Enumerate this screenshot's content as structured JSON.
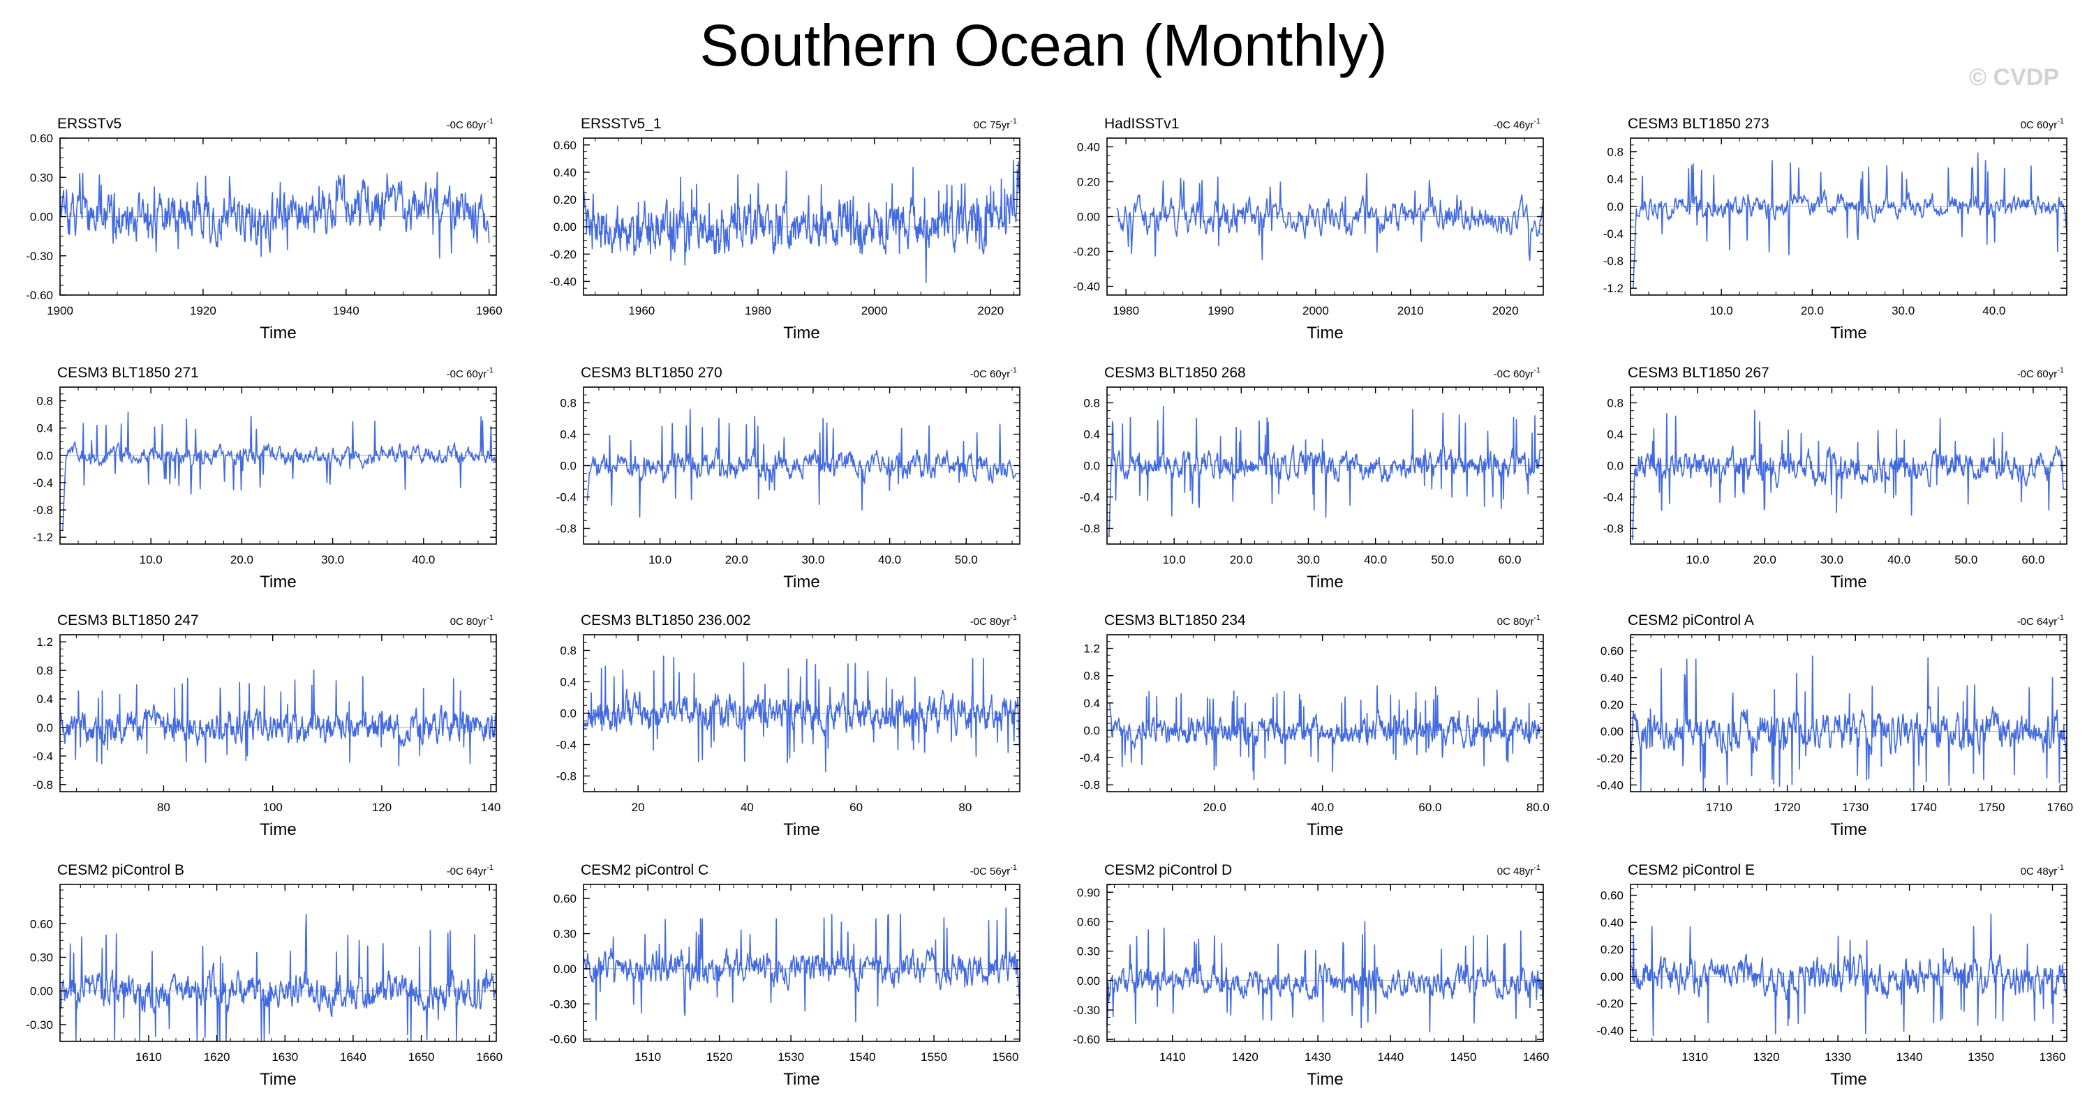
{
  "title": "Southern Ocean (Monthly)",
  "copyright": "© CVDP",
  "colors": {
    "line": "#4169e1",
    "zero": "#b4b4b4",
    "axis": "#000000"
  },
  "chart_data": [
    {
      "type": "line",
      "title": "ERSSTv5",
      "trend": "-0C 60yr",
      "trend_sup": "-1",
      "xlabel": "Time",
      "xlim": [
        1900,
        1961
      ],
      "ylim": [
        -0.6,
        0.6
      ],
      "yticks": [
        "-0.60",
        "-0.30",
        "0.00",
        "0.30",
        "0.60"
      ],
      "ytick_values": [
        -0.6,
        -0.3,
        0,
        0.3,
        0.6
      ],
      "xticks": [
        "1900",
        "1920",
        "1940",
        "1960"
      ],
      "xtick_values": [
        1900,
        1920,
        1940,
        1960
      ],
      "series": {
        "x_start": 1900,
        "x_end": 1960,
        "amp": 0.13,
        "mean": 0.0,
        "spike": 0.25,
        "start_val": 0.15,
        "end_val": -0.2,
        "seed": 11,
        "trend_shape": "warm1940"
      }
    },
    {
      "type": "line",
      "title": "ERSSTv5_1",
      "trend": "0C 75yr",
      "trend_sup": "-1",
      "xlabel": "Time",
      "xlim": [
        1950,
        2025
      ],
      "ylim": [
        -0.5,
        0.65
      ],
      "yticks": [
        "-0.40",
        "-0.20",
        "0.00",
        "0.20",
        "0.40",
        "0.60"
      ],
      "ytick_values": [
        -0.4,
        -0.2,
        0,
        0.2,
        0.4,
        0.6
      ],
      "xticks": [
        "1960",
        "1980",
        "2000",
        "2020"
      ],
      "xtick_values": [
        1960,
        1980,
        2000,
        2020
      ],
      "series": {
        "x_start": 1950,
        "x_end": 2025,
        "amp": 0.12,
        "mean": 0.0,
        "spike": 0.3,
        "start_val": 0.3,
        "end_val": 0.25,
        "seed": 12,
        "trend_shape": "late_rise"
      }
    },
    {
      "type": "line",
      "title": "HadISSTv1",
      "trend": "-0C 46yr",
      "trend_sup": "-1",
      "xlabel": "Time",
      "xlim": [
        1978,
        2024
      ],
      "ylim": [
        -0.45,
        0.45
      ],
      "yticks": [
        "-0.40",
        "-0.20",
        "0.00",
        "0.20",
        "0.40"
      ],
      "ytick_values": [
        -0.4,
        -0.2,
        0,
        0.2,
        0.4
      ],
      "xticks": [
        "1980",
        "1990",
        "2000",
        "2010",
        "2020"
      ],
      "xtick_values": [
        1980,
        1990,
        2000,
        2010,
        2020
      ],
      "series": {
        "x_start": 1979,
        "x_end": 2024,
        "amp": 0.07,
        "mean": 0.0,
        "spike": 0.2,
        "start_val": 0.05,
        "end_val": 0.1,
        "seed": 13,
        "trend_shape": "flat"
      }
    },
    {
      "type": "line",
      "title": "CESM3 BLT1850 273",
      "trend": "0C 60yr",
      "trend_sup": "-1",
      "xlabel": "Time",
      "xlim": [
        0,
        48
      ],
      "ylim": [
        -1.3,
        1.0
      ],
      "yticks": [
        "-1.2",
        "-0.8",
        "-0.4",
        "0.0",
        "0.4",
        "0.8"
      ],
      "ytick_values": [
        -1.2,
        -0.8,
        -0.4,
        0,
        0.4,
        0.8
      ],
      "xticks": [
        "10.0",
        "20.0",
        "30.0",
        "40.0"
      ],
      "xtick_values": [
        10,
        20,
        30,
        40
      ],
      "series": {
        "x_start": 0.3,
        "x_end": 48,
        "amp": 0.12,
        "mean": 0.0,
        "spike": 0.7,
        "start_val": -1.2,
        "end_val": -0.4,
        "seed": 14,
        "trend_shape": "flat"
      }
    },
    {
      "type": "line",
      "title": "CESM3 BLT1850 271",
      "trend": "-0C 60yr",
      "trend_sup": "-1",
      "xlabel": "Time",
      "xlim": [
        0,
        48
      ],
      "ylim": [
        -1.3,
        1.0
      ],
      "yticks": [
        "-1.2",
        "-0.8",
        "-0.4",
        "0.0",
        "0.4",
        "0.8"
      ],
      "ytick_values": [
        -1.2,
        -0.8,
        -0.4,
        0,
        0.4,
        0.8
      ],
      "xticks": [
        "10.0",
        "20.0",
        "30.0",
        "40.0"
      ],
      "xtick_values": [
        10,
        20,
        30,
        40
      ],
      "series": {
        "x_start": 0.3,
        "x_end": 48,
        "amp": 0.1,
        "mean": 0.0,
        "spike": 0.6,
        "start_val": -1.1,
        "end_val": -0.1,
        "seed": 15,
        "trend_shape": "flat"
      }
    },
    {
      "type": "line",
      "title": "CESM3 BLT1850 270",
      "trend": "-0C 60yr",
      "trend_sup": "-1",
      "xlabel": "Time",
      "xlim": [
        0,
        57
      ],
      "ylim": [
        -1.0,
        1.0
      ],
      "yticks": [
        "-0.8",
        "-0.4",
        "0.0",
        "0.4",
        "0.8"
      ],
      "ytick_values": [
        -0.8,
        -0.4,
        0,
        0.4,
        0.8
      ],
      "xticks": [
        "10.0",
        "20.0",
        "30.0",
        "40.0",
        "50.0"
      ],
      "xtick_values": [
        10,
        20,
        30,
        40,
        50
      ],
      "series": {
        "x_start": 0.5,
        "x_end": 56.5,
        "amp": 0.12,
        "mean": 0.0,
        "spike": 0.65,
        "start_val": -0.45,
        "end_val": -0.1,
        "seed": 16,
        "trend_shape": "flat"
      }
    },
    {
      "type": "line",
      "title": "CESM3 BLT1850 268",
      "trend": "-0C 60yr",
      "trend_sup": "-1",
      "xlabel": "Time",
      "xlim": [
        0,
        65
      ],
      "ylim": [
        -1.0,
        1.0
      ],
      "yticks": [
        "-0.8",
        "-0.4",
        "0.0",
        "0.4",
        "0.8"
      ],
      "ytick_values": [
        -0.8,
        -0.4,
        0,
        0.4,
        0.8
      ],
      "xticks": [
        "10.0",
        "20.0",
        "30.0",
        "40.0",
        "50.0",
        "60.0"
      ],
      "xtick_values": [
        10,
        20,
        30,
        40,
        50,
        60
      ],
      "series": {
        "x_start": 0.3,
        "x_end": 64.5,
        "amp": 0.12,
        "mean": 0.0,
        "spike": 0.65,
        "start_val": -0.9,
        "end_val": 0.2,
        "seed": 17,
        "trend_shape": "flat"
      }
    },
    {
      "type": "line",
      "title": "CESM3 BLT1850 267",
      "trend": "-0C 60yr",
      "trend_sup": "-1",
      "xlabel": "Time",
      "xlim": [
        0,
        65
      ],
      "ylim": [
        -1.0,
        1.0
      ],
      "yticks": [
        "-0.8",
        "-0.4",
        "0.0",
        "0.4",
        "0.8"
      ],
      "ytick_values": [
        -0.8,
        -0.4,
        0,
        0.4,
        0.8
      ],
      "xticks": [
        "10.0",
        "20.0",
        "30.0",
        "40.0",
        "50.0",
        "60.0"
      ],
      "xtick_values": [
        10,
        20,
        30,
        40,
        50,
        60
      ],
      "series": {
        "x_start": 0.3,
        "x_end": 64.5,
        "amp": 0.13,
        "mean": 0.0,
        "spike": 0.6,
        "start_val": -0.95,
        "end_val": -0.3,
        "seed": 18,
        "trend_shape": "flat"
      }
    },
    {
      "type": "line",
      "title": "CESM3 BLT1850 247",
      "trend": "0C 80yr",
      "trend_sup": "-1",
      "xlabel": "Time",
      "xlim": [
        61,
        141
      ],
      "ylim": [
        -0.9,
        1.3
      ],
      "yticks": [
        "-0.8",
        "-0.4",
        "0.0",
        "0.4",
        "0.8",
        "1.2"
      ],
      "ytick_values": [
        -0.8,
        -0.4,
        0,
        0.4,
        0.8,
        1.2
      ],
      "xticks": [
        "80",
        "100",
        "120",
        "140"
      ],
      "xtick_values": [
        80,
        100,
        120,
        140
      ],
      "series": {
        "x_start": 61,
        "x_end": 141,
        "amp": 0.15,
        "mean": 0.0,
        "spike": 0.65,
        "start_val": 0.3,
        "end_val": 0.25,
        "seed": 19,
        "trend_shape": "flat"
      }
    },
    {
      "type": "line",
      "title": "CESM3 BLT1850 236.002",
      "trend": "-0C 80yr",
      "trend_sup": "-1",
      "xlabel": "Time",
      "xlim": [
        10,
        90
      ],
      "ylim": [
        -1.0,
        1.0
      ],
      "yticks": [
        "-0.8",
        "-0.4",
        "0.0",
        "0.4",
        "0.8"
      ],
      "ytick_values": [
        -0.8,
        -0.4,
        0,
        0.4,
        0.8
      ],
      "xticks": [
        "20",
        "40",
        "60",
        "80"
      ],
      "xtick_values": [
        20,
        40,
        60,
        80
      ],
      "series": {
        "x_start": 10,
        "x_end": 90,
        "amp": 0.15,
        "mean": 0.0,
        "spike": 0.6,
        "start_val": -0.2,
        "end_val": -0.55,
        "seed": 20,
        "trend_shape": "flat"
      }
    },
    {
      "type": "line",
      "title": "CESM3 BLT1850 234",
      "trend": "0C 80yr",
      "trend_sup": "-1",
      "xlabel": "Time",
      "xlim": [
        0,
        81
      ],
      "ylim": [
        -0.9,
        1.4
      ],
      "yticks": [
        "-0.8",
        "-0.4",
        "0.0",
        "0.4",
        "0.8",
        "1.2"
      ],
      "ytick_values": [
        -0.8,
        -0.4,
        0,
        0.4,
        0.8,
        1.2
      ],
      "xticks": [
        "20.0",
        "40.0",
        "60.0",
        "80.0"
      ],
      "xtick_values": [
        20,
        40,
        60,
        80
      ],
      "series": {
        "x_start": 0.5,
        "x_end": 80.5,
        "amp": 0.13,
        "mean": 0.0,
        "spike": 0.6,
        "start_val": 0.4,
        "end_val": 0.05,
        "seed": 21,
        "trend_shape": "flat"
      }
    },
    {
      "type": "line",
      "title": "CESM2 piControl A",
      "trend": "-0C 64yr",
      "trend_sup": "-1",
      "xlabel": "Time",
      "xlim": [
        1697,
        1761
      ],
      "ylim": [
        -0.45,
        0.72
      ],
      "yticks": [
        "-0.40",
        "-0.20",
        "0.00",
        "0.20",
        "0.40",
        "0.60"
      ],
      "ytick_values": [
        -0.4,
        -0.2,
        0,
        0.2,
        0.4,
        0.6
      ],
      "xticks": [
        "1710",
        "1720",
        "1730",
        "1740",
        "1750",
        "1760"
      ],
      "xtick_values": [
        1710,
        1720,
        1730,
        1740,
        1750,
        1760
      ],
      "series": {
        "x_start": 1697,
        "x_end": 1761,
        "amp": 0.1,
        "mean": 0.0,
        "spike": 0.45,
        "start_val": -0.3,
        "end_val": -0.2,
        "seed": 22,
        "trend_shape": "flat"
      }
    },
    {
      "type": "line",
      "title": "CESM2 piControl B",
      "trend": "-0C 64yr",
      "trend_sup": "-1",
      "xlabel": "Time",
      "xlim": [
        1597,
        1661
      ],
      "ylim": [
        -0.45,
        0.95
      ],
      "yticks": [
        "-0.30",
        "0.00",
        "0.30",
        "0.60"
      ],
      "ytick_values": [
        -0.3,
        0,
        0.3,
        0.6
      ],
      "xticks": [
        "1610",
        "1620",
        "1630",
        "1640",
        "1650",
        "1660"
      ],
      "xtick_values": [
        1610,
        1620,
        1630,
        1640,
        1650,
        1660
      ],
      "series": {
        "x_start": 1597,
        "x_end": 1661,
        "amp": 0.11,
        "mean": 0.0,
        "spike": 0.55,
        "start_val": -0.2,
        "end_val": 0.05,
        "seed": 23,
        "trend_shape": "flat"
      }
    },
    {
      "type": "line",
      "title": "CESM2 piControl C",
      "trend": "-0C 56yr",
      "trend_sup": "-1",
      "xlabel": "Time",
      "xlim": [
        1501,
        1562
      ],
      "ylim": [
        -0.62,
        0.72
      ],
      "yticks": [
        "-0.60",
        "-0.30",
        "0.00",
        "0.30",
        "0.60"
      ],
      "ytick_values": [
        -0.6,
        -0.3,
        0,
        0.3,
        0.6
      ],
      "xticks": [
        "1510",
        "1520",
        "1530",
        "1540",
        "1550",
        "1560"
      ],
      "xtick_values": [
        1510,
        1520,
        1530,
        1540,
        1550,
        1560
      ],
      "series": {
        "x_start": 1501,
        "x_end": 1562,
        "amp": 0.1,
        "mean": 0.0,
        "spike": 0.45,
        "start_val": 0.1,
        "end_val": -0.3,
        "seed": 24,
        "trend_shape": "flat"
      }
    },
    {
      "type": "line",
      "title": "CESM2 piControl D",
      "trend": "0C 48yr",
      "trend_sup": "-1",
      "xlabel": "Time",
      "xlim": [
        1401,
        1461
      ],
      "ylim": [
        -0.62,
        0.98
      ],
      "yticks": [
        "-0.60",
        "-0.30",
        "0.00",
        "0.30",
        "0.60",
        "0.90"
      ],
      "ytick_values": [
        -0.6,
        -0.3,
        0,
        0.3,
        0.6,
        0.9
      ],
      "xticks": [
        "1410",
        "1420",
        "1430",
        "1440",
        "1450",
        "1460"
      ],
      "xtick_values": [
        1410,
        1420,
        1430,
        1440,
        1450,
        1460
      ],
      "series": {
        "x_start": 1401,
        "x_end": 1461,
        "amp": 0.1,
        "mean": 0.0,
        "spike": 0.55,
        "start_val": -0.45,
        "end_val": -0.1,
        "seed": 25,
        "trend_shape": "flat"
      }
    },
    {
      "type": "line",
      "title": "CESM2 piControl E",
      "trend": "0C 48yr",
      "trend_sup": "-1",
      "xlabel": "Time",
      "xlim": [
        1301,
        1362
      ],
      "ylim": [
        -0.48,
        0.68
      ],
      "yticks": [
        "-0.40",
        "-0.20",
        "0.00",
        "0.20",
        "0.40",
        "0.60"
      ],
      "ytick_values": [
        -0.4,
        -0.2,
        0,
        0.2,
        0.4,
        0.6
      ],
      "xticks": [
        "1310",
        "1320",
        "1330",
        "1340",
        "1350",
        "1360"
      ],
      "xtick_values": [
        1310,
        1320,
        1330,
        1340,
        1350,
        1360
      ],
      "series": {
        "x_start": 1301,
        "x_end": 1362,
        "amp": 0.09,
        "mean": 0.0,
        "spike": 0.4,
        "start_val": 0.1,
        "end_val": -0.15,
        "seed": 26,
        "trend_shape": "flat"
      }
    }
  ]
}
